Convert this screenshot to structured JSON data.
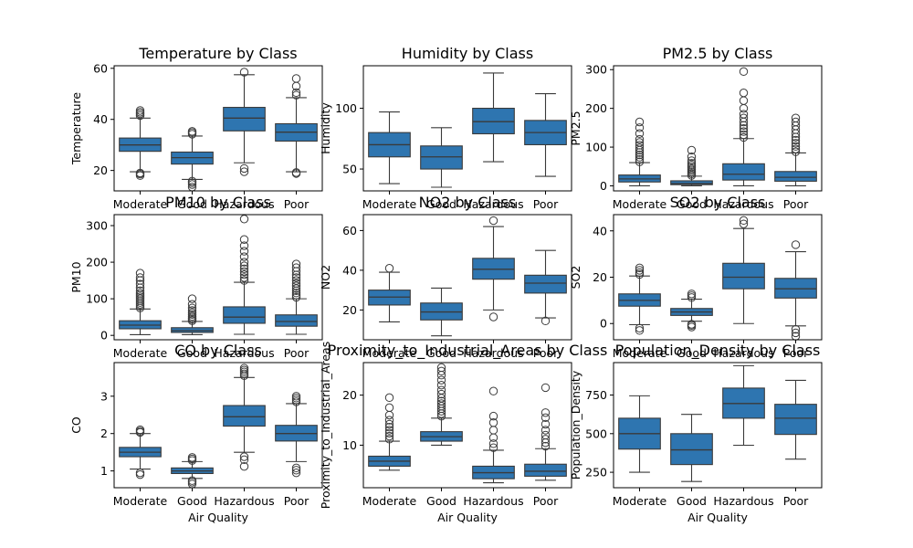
{
  "chart_data": [
    {
      "type": "box",
      "title": "Temperature by Class",
      "xlabel": "",
      "ylabel": "Temperature",
      "categories": [
        "Moderate",
        "Good",
        "Hazardous",
        "Poor"
      ],
      "ylim": [
        12,
        61
      ],
      "yticks": [
        20,
        40,
        60
      ],
      "boxes": [
        {
          "whislo": 19.5,
          "q1": 27.5,
          "med": 30,
          "q3": 32.7,
          "whishi": 40.5,
          "fliers": [
            18,
            18.6,
            19,
            41.5,
            42.2,
            42.8,
            43.5
          ]
        },
        {
          "whislo": 16.5,
          "q1": 22.5,
          "med": 25,
          "q3": 27.2,
          "whishi": 33.5,
          "fliers": [
            13.5,
            14.5,
            15.2,
            15.8,
            34.2,
            34.8,
            35.3
          ]
        },
        {
          "whislo": 23,
          "q1": 35.5,
          "med": 40.5,
          "q3": 44.7,
          "whishi": 57.5,
          "fliers": [
            19.5,
            20.8,
            58.5
          ]
        },
        {
          "whislo": 19.5,
          "q1": 31.5,
          "med": 35,
          "q3": 38.3,
          "whishi": 48.5,
          "fliers": [
            18.8,
            19.2,
            49.5,
            50.5,
            53,
            56
          ]
        }
      ]
    },
    {
      "type": "box",
      "title": "Humidity by Class",
      "xlabel": "",
      "ylabel": "Humidity",
      "categories": [
        "Moderate",
        "Good",
        "Hazardous",
        "Poor"
      ],
      "ylim": [
        32,
        135
      ],
      "yticks": [
        50,
        100
      ],
      "boxes": [
        {
          "whislo": 38,
          "q1": 60,
          "med": 70,
          "q3": 80,
          "whishi": 97,
          "fliers": []
        },
        {
          "whislo": 35,
          "q1": 50,
          "med": 60,
          "q3": 69,
          "whishi": 84,
          "fliers": []
        },
        {
          "whislo": 56,
          "q1": 79,
          "med": 89,
          "q3": 100,
          "whishi": 129,
          "fliers": []
        },
        {
          "whislo": 44,
          "q1": 70,
          "med": 80,
          "q3": 90,
          "whishi": 112,
          "fliers": []
        }
      ]
    },
    {
      "type": "box",
      "title": "PM2.5 by Class",
      "xlabel": "",
      "ylabel": "PM2.5",
      "categories": [
        "Moderate",
        "Good",
        "Hazardous",
        "Poor"
      ],
      "ylim": [
        -13,
        310
      ],
      "yticks": [
        0,
        100,
        200,
        300
      ],
      "boxes": [
        {
          "whislo": 0,
          "q1": 10,
          "med": 18,
          "q3": 28,
          "whishi": 60,
          "fliers": [
            62,
            68,
            74,
            80,
            86,
            92,
            98,
            105,
            112,
            120,
            135,
            150,
            165
          ]
        },
        {
          "whislo": 0,
          "q1": 3,
          "med": 6,
          "q3": 13,
          "whishi": 25,
          "fliers": [
            27,
            31,
            35,
            39,
            43,
            48,
            53,
            58,
            65,
            75,
            92
          ]
        },
        {
          "whislo": 0,
          "q1": 15,
          "med": 30,
          "q3": 57,
          "whishi": 122,
          "fliers": [
            125,
            132,
            140,
            148,
            156,
            165,
            175,
            185,
            200,
            220,
            240,
            295
          ]
        },
        {
          "whislo": 0,
          "q1": 12,
          "med": 22,
          "q3": 37,
          "whishi": 85,
          "fliers": [
            88,
            95,
            102,
            110,
            118,
            126,
            135,
            145,
            155,
            165,
            175
          ]
        }
      ]
    },
    {
      "type": "box",
      "title": "PM10 by Class",
      "xlabel": "",
      "ylabel": "PM10",
      "categories": [
        "Moderate",
        "Good",
        "Hazardous",
        "Poor"
      ],
      "ylim": [
        -12,
        330
      ],
      "yticks": [
        0,
        100,
        200,
        300
      ],
      "boxes": [
        {
          "whislo": 2,
          "q1": 18,
          "med": 28,
          "q3": 40,
          "whishi": 72,
          "fliers": [
            75,
            80,
            85,
            90,
            95,
            100,
            105,
            110,
            115,
            122,
            130,
            140,
            150,
            158,
            170
          ]
        },
        {
          "whislo": 2,
          "q1": 8,
          "med": 13,
          "q3": 21,
          "whishi": 38,
          "fliers": [
            40,
            44,
            48,
            52,
            57,
            62,
            68,
            75,
            85,
            100
          ]
        },
        {
          "whislo": 3,
          "q1": 33,
          "med": 50,
          "q3": 78,
          "whishi": 145,
          "fliers": [
            150,
            158,
            166,
            174,
            182,
            190,
            200,
            215,
            230,
            245,
            262,
            318
          ]
        },
        {
          "whislo": 3,
          "q1": 25,
          "med": 38,
          "q3": 56,
          "whishi": 100,
          "fliers": [
            104,
            110,
            116,
            122,
            128,
            135,
            142,
            150,
            158,
            165,
            175,
            185,
            195
          ]
        }
      ]
    },
    {
      "type": "box",
      "title": "NO2 by Class",
      "xlabel": "",
      "ylabel": "NO2",
      "categories": [
        "Moderate",
        "Good",
        "Hazardous",
        "Poor"
      ],
      "ylim": [
        5,
        68
      ],
      "yticks": [
        20,
        40,
        60
      ],
      "boxes": [
        {
          "whislo": 14,
          "q1": 22.5,
          "med": 26.5,
          "q3": 30,
          "whishi": 39,
          "fliers": [
            41
          ]
        },
        {
          "whislo": 7,
          "q1": 15,
          "med": 19,
          "q3": 23.5,
          "whishi": 31,
          "fliers": []
        },
        {
          "whislo": 20,
          "q1": 35.5,
          "med": 40.5,
          "q3": 46,
          "whishi": 62,
          "fliers": [
            16.5,
            65
          ]
        },
        {
          "whislo": 16,
          "q1": 28.5,
          "med": 33.5,
          "q3": 37.5,
          "whishi": 50,
          "fliers": [
            14.5
          ]
        }
      ]
    },
    {
      "type": "box",
      "title": "SO2 by Class",
      "xlabel": "",
      "ylabel": "SO2",
      "categories": [
        "Moderate",
        "Good",
        "Hazardous",
        "Poor"
      ],
      "ylim": [
        -7,
        47
      ],
      "yticks": [
        0,
        20,
        40
      ],
      "boxes": [
        {
          "whislo": -0.5,
          "q1": 7.5,
          "med": 10,
          "q3": 12.8,
          "whishi": 20.5,
          "fliers": [
            -3,
            -2,
            21.2,
            22,
            23,
            24
          ]
        },
        {
          "whislo": 1,
          "q1": 3.5,
          "med": 5,
          "q3": 6.5,
          "whishi": 10.5,
          "fliers": [
            -1.5,
            -0.8,
            -0.3,
            11.2,
            12,
            12.8
          ]
        },
        {
          "whislo": 0,
          "q1": 15,
          "med": 20,
          "q3": 26,
          "whishi": 41,
          "fliers": [
            43,
            44.5
          ]
        },
        {
          "whislo": -1,
          "q1": 11,
          "med": 15,
          "q3": 19.5,
          "whishi": 31,
          "fliers": [
            -5.5,
            -4,
            -2.5,
            34
          ]
        }
      ]
    },
    {
      "type": "box",
      "title": "CO by Class",
      "xlabel": "Air Quality",
      "ylabel": "CO",
      "categories": [
        "Moderate",
        "Good",
        "Hazardous",
        "Poor"
      ],
      "ylim": [
        0.55,
        3.9
      ],
      "yticks": [
        1,
        2,
        3
      ],
      "boxes": [
        {
          "whislo": 1.05,
          "q1": 1.38,
          "med": 1.5,
          "q3": 1.63,
          "whishi": 2.0,
          "fliers": [
            0.9,
            0.95,
            2.03,
            2.06,
            2.1
          ]
        },
        {
          "whislo": 0.8,
          "q1": 0.93,
          "med": 1.0,
          "q3": 1.08,
          "whishi": 1.25,
          "fliers": [
            0.65,
            0.7,
            0.74,
            1.28,
            1.32,
            1.36
          ]
        },
        {
          "whislo": 1.5,
          "q1": 2.2,
          "med": 2.45,
          "q3": 2.75,
          "whishi": 3.5,
          "fliers": [
            1.12,
            1.3,
            1.38,
            3.55,
            3.6,
            3.65,
            3.7,
            3.75
          ]
        },
        {
          "whislo": 1.25,
          "q1": 1.8,
          "med": 2.0,
          "q3": 2.22,
          "whishi": 2.8,
          "fliers": [
            0.95,
            1.02,
            1.08,
            2.85,
            2.9,
            2.95,
            3.0
          ]
        }
      ]
    },
    {
      "type": "box",
      "title": "Proximity_to_Industrial_Areas by Class",
      "xlabel": "Air Quality",
      "ylabel": "Proximity_to_Industrial_Areas",
      "categories": [
        "Moderate",
        "Good",
        "Hazardous",
        "Poor"
      ],
      "ylim": [
        1.5,
        26.5
      ],
      "yticks": [
        10,
        20
      ],
      "boxes": [
        {
          "whislo": 5,
          "q1": 5.8,
          "med": 6.8,
          "q3": 7.8,
          "whishi": 10.8,
          "fliers": [
            11.2,
            11.8,
            12.4,
            13,
            13.6,
            14.2,
            15,
            16,
            17.5,
            19.5
          ]
        },
        {
          "whislo": 10,
          "q1": 10.8,
          "med": 11.7,
          "q3": 12.7,
          "whishi": 15.4,
          "fliers": [
            15.8,
            16.3,
            16.8,
            17.3,
            17.8,
            18.3,
            18.8,
            19.4,
            20.2,
            21,
            22,
            23,
            24,
            24.8,
            25.5
          ]
        },
        {
          "whislo": 2.5,
          "q1": 3.3,
          "med": 4.5,
          "q3": 5.8,
          "whishi": 9.0,
          "fliers": [
            9.5,
            10.3,
            11.5,
            13,
            14.5,
            15.8,
            20.8
          ]
        },
        {
          "whislo": 3,
          "q1": 3.8,
          "med": 4.8,
          "q3": 6.2,
          "whishi": 9.3,
          "fliers": [
            9.8,
            10.5,
            11.2,
            12,
            13,
            14.2,
            15.5,
            16.5,
            21.5
          ]
        }
      ]
    },
    {
      "type": "box",
      "title": "Population_Density by Class",
      "xlabel": "Air Quality",
      "ylabel": "Population_Density",
      "categories": [
        "Moderate",
        "Good",
        "Hazardous",
        "Poor"
      ],
      "ylim": [
        150,
        960
      ],
      "yticks": [
        250,
        500,
        750
      ],
      "boxes": [
        {
          "whislo": 250,
          "q1": 400,
          "med": 500,
          "q3": 600,
          "whishi": 745,
          "fliers": []
        },
        {
          "whislo": 190,
          "q1": 300,
          "med": 395,
          "q3": 500,
          "whishi": 625,
          "fliers": []
        },
        {
          "whislo": 425,
          "q1": 600,
          "med": 695,
          "q3": 795,
          "whishi": 940,
          "fliers": []
        },
        {
          "whislo": 335,
          "q1": 495,
          "med": 600,
          "q3": 690,
          "whishi": 845,
          "fliers": []
        }
      ]
    }
  ],
  "colors": {
    "box_fill": "#2e75b0",
    "line": "#3a3a3a",
    "axis": "#000000"
  }
}
